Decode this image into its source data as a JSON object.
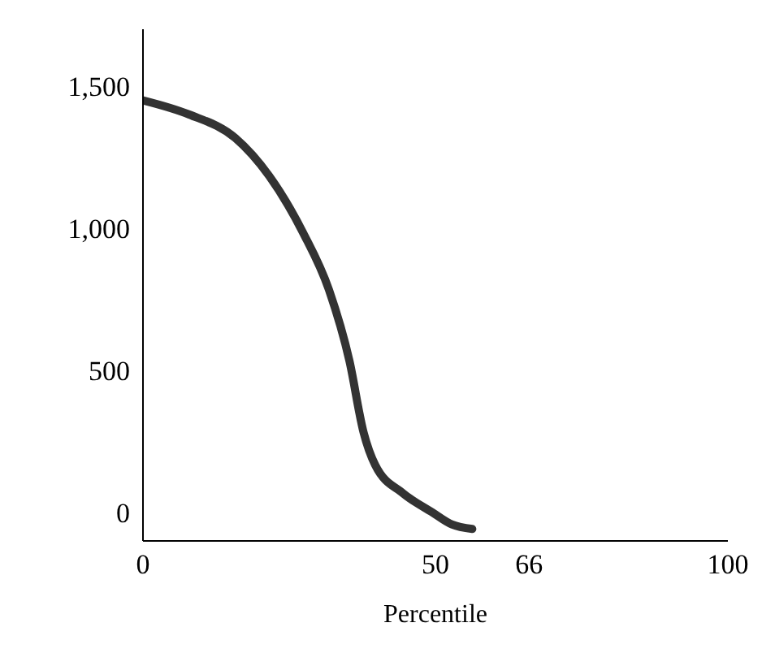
{
  "chart_data": {
    "type": "line",
    "xlabel": "Percentile",
    "x": [
      0,
      7.9,
      15.8,
      21.6,
      27.4,
      31.8,
      35.3,
      37.7,
      39.7,
      44.5,
      49.5,
      52.8,
      56.3
    ],
    "series": [
      {
        "color": "#333333",
        "values": [
          1450,
          1400,
          1317,
          1183,
          983,
          783,
          533,
          283,
          167,
          67,
          0,
          -42,
          -58
        ]
      }
    ],
    "xlim": [
      0,
      100
    ],
    "xticks": [
      0,
      50,
      66,
      100
    ],
    "ylim": [
      -100,
      1700
    ],
    "yticks": [
      0,
      500,
      {
        "value": 1000,
        "label": "1,000"
      },
      {
        "value": 1500,
        "label": "1,500"
      }
    ],
    "grid": false,
    "legend": false,
    "marker": "none",
    "line_style": "solid"
  }
}
